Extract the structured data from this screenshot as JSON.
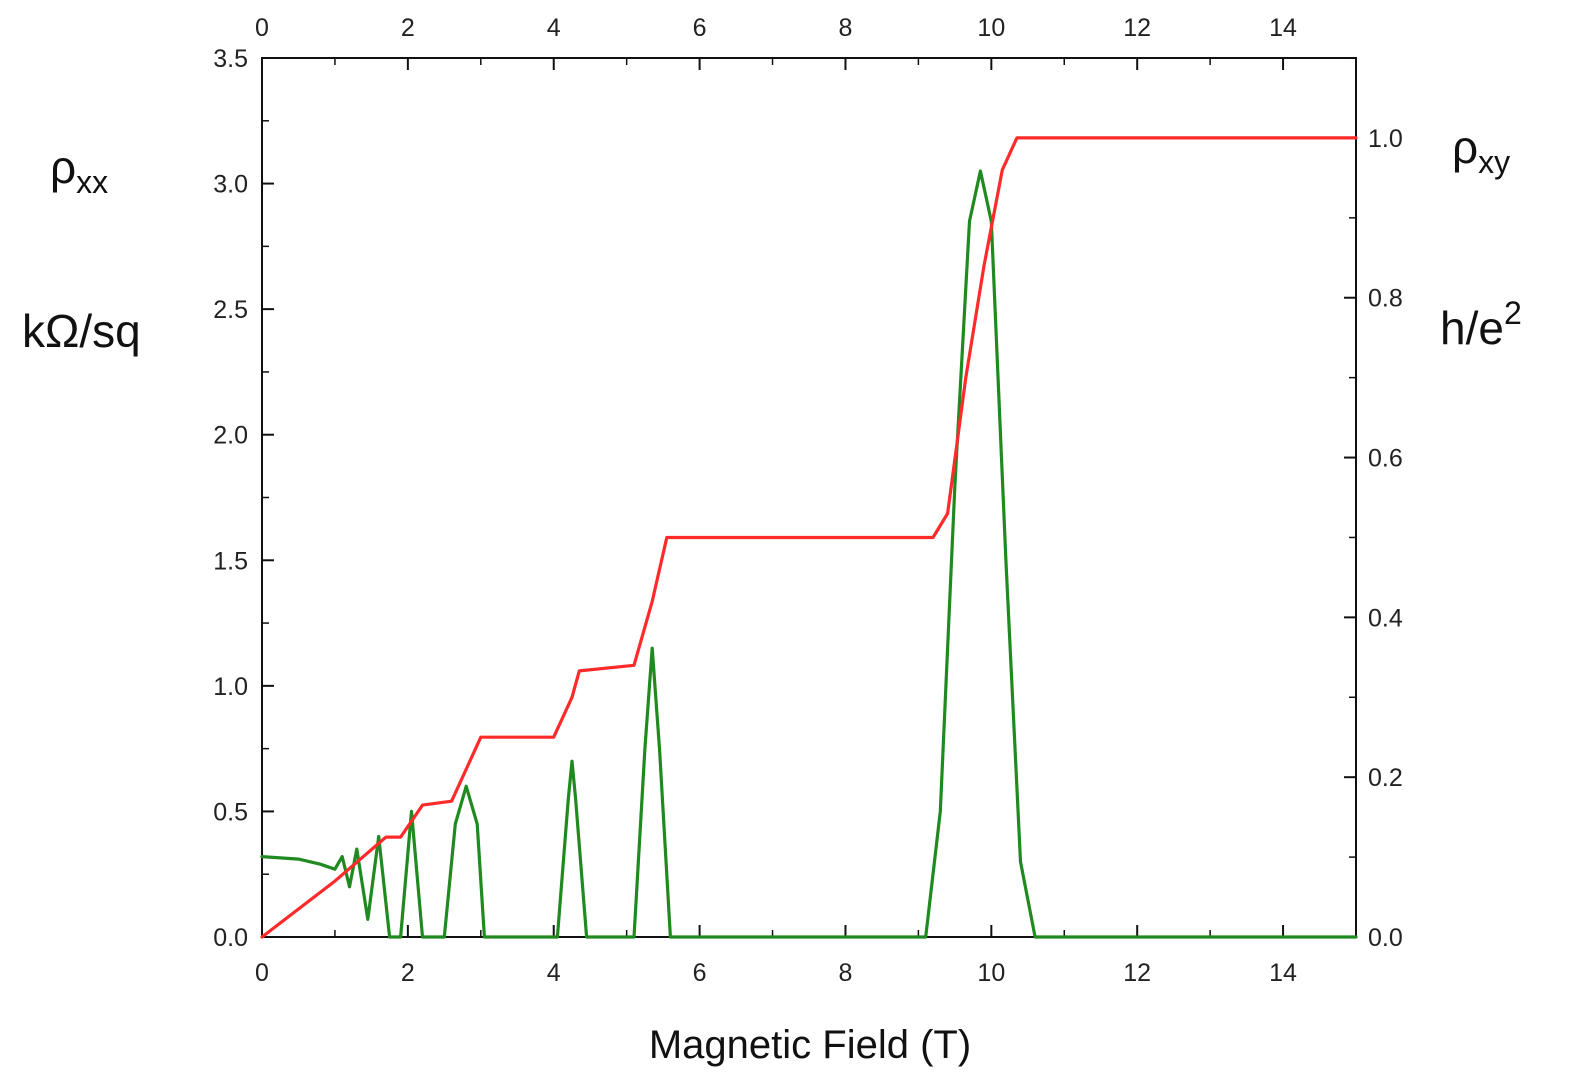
{
  "chart_data": {
    "type": "line",
    "xlabel": "Magnetic Field  (T)",
    "x_range": [
      0,
      15
    ],
    "x_ticks": [
      0,
      2,
      4,
      6,
      8,
      10,
      12,
      14
    ],
    "x_tick_labels": [
      "0",
      "2",
      "4",
      "6",
      "8",
      "10",
      "12",
      "14"
    ],
    "top_axis_ticks_mirrored": true,
    "left_axis": {
      "symbol": "ρ",
      "subscript": "xx",
      "unit": "kΩ/sq",
      "range": [
        0,
        3.5
      ],
      "ticks": [
        0,
        0.5,
        1.0,
        1.5,
        2.0,
        2.5,
        3.0,
        3.5
      ],
      "tick_labels": [
        "0.0",
        "0.5",
        "1.0",
        "1.5",
        "2.0",
        "2.5",
        "3.0",
        "3.5"
      ]
    },
    "right_axis": {
      "symbol": "ρ",
      "subscript": "xy",
      "unit_base": "h/e",
      "unit_exp": "2",
      "range": [
        0,
        1.1
      ],
      "ticks": [
        0,
        0.2,
        0.4,
        0.6,
        0.8,
        1.0
      ],
      "tick_labels": [
        "0.0",
        "0.2",
        "0.4",
        "0.6",
        "0.8",
        "1.0"
      ]
    },
    "grid": false,
    "series": [
      {
        "axis": "left",
        "color": "#1f8a1f",
        "points": [
          [
            0.0,
            0.32
          ],
          [
            0.5,
            0.31
          ],
          [
            0.8,
            0.29
          ],
          [
            1.0,
            0.27
          ],
          [
            1.1,
            0.32
          ],
          [
            1.2,
            0.2
          ],
          [
            1.3,
            0.35
          ],
          [
            1.45,
            0.07
          ],
          [
            1.6,
            0.4
          ],
          [
            1.75,
            0.0
          ],
          [
            1.9,
            0.0
          ],
          [
            2.05,
            0.5
          ],
          [
            2.2,
            0.0
          ],
          [
            2.5,
            0.0
          ],
          [
            2.65,
            0.45
          ],
          [
            2.8,
            0.6
          ],
          [
            2.95,
            0.45
          ],
          [
            3.05,
            0.0
          ],
          [
            4.05,
            0.0
          ],
          [
            4.2,
            0.55
          ],
          [
            4.25,
            0.7
          ],
          [
            4.3,
            0.55
          ],
          [
            4.45,
            0.0
          ],
          [
            5.1,
            0.0
          ],
          [
            5.25,
            0.75
          ],
          [
            5.35,
            1.15
          ],
          [
            5.45,
            0.75
          ],
          [
            5.6,
            0.0
          ],
          [
            9.1,
            0.0
          ],
          [
            9.3,
            0.5
          ],
          [
            9.5,
            1.8
          ],
          [
            9.7,
            2.85
          ],
          [
            9.85,
            3.05
          ],
          [
            10.0,
            2.85
          ],
          [
            10.2,
            1.5
          ],
          [
            10.4,
            0.3
          ],
          [
            10.6,
            0.0
          ],
          [
            15.0,
            0.0
          ]
        ]
      },
      {
        "axis": "right",
        "color": "#ff2a2a",
        "points": [
          [
            0.0,
            0.0
          ],
          [
            1.0,
            0.07
          ],
          [
            1.7,
            0.125
          ],
          [
            1.9,
            0.125
          ],
          [
            2.2,
            0.165
          ],
          [
            2.6,
            0.17
          ],
          [
            3.0,
            0.25
          ],
          [
            4.0,
            0.25
          ],
          [
            4.25,
            0.3
          ],
          [
            4.35,
            0.333
          ],
          [
            5.1,
            0.34
          ],
          [
            5.35,
            0.42
          ],
          [
            5.55,
            0.5
          ],
          [
            9.2,
            0.5
          ],
          [
            9.4,
            0.53
          ],
          [
            9.65,
            0.7
          ],
          [
            9.9,
            0.84
          ],
          [
            10.15,
            0.96
          ],
          [
            10.35,
            1.0
          ],
          [
            15.0,
            1.0
          ]
        ]
      }
    ]
  }
}
